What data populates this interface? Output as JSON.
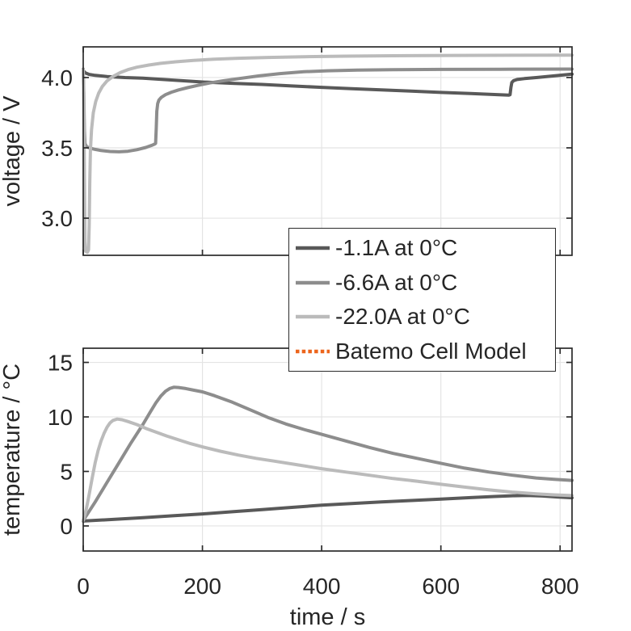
{
  "figure": {
    "background": "#ffffff",
    "axis_color": "#2b2b2b",
    "grid_color": "#e4e4e4",
    "text_color": "#262626"
  },
  "legend": {
    "items": [
      {
        "label": "-1.1A at 0°C",
        "color": "#595959",
        "dash": "solid"
      },
      {
        "label": "-6.6A at 0°C",
        "color": "#8d8d8d",
        "dash": "solid"
      },
      {
        "label": "-22.0A at 0°C",
        "color": "#bbbbbb",
        "dash": "solid"
      },
      {
        "label": "Batemo Cell Model",
        "color": "#ec651c",
        "dash": "dotted"
      }
    ]
  },
  "chart_data": [
    {
      "type": "line",
      "title": "",
      "xlabel": "",
      "ylabel": "voltage / V",
      "xlim": [
        0,
        820
      ],
      "ylim": [
        2.736,
        4.218
      ],
      "grid": true,
      "legend_position": "between-subplots",
      "xticks": [
        0,
        200,
        400,
        600,
        800
      ],
      "xticklabels": [
        "",
        "",
        "",
        "",
        ""
      ],
      "yticks": [
        3.0,
        3.5,
        4.0
      ],
      "yticklabels": [
        "3.0",
        "3.5",
        "4.0"
      ],
      "series": [
        {
          "name": "-1.1A at 0°C",
          "color": "#595959",
          "points": [
            [
              0,
              4.048
            ],
            [
              4,
              4.032
            ],
            [
              10,
              4.022
            ],
            [
              20,
              4.015
            ],
            [
              40,
              4.007
            ],
            [
              70,
              4.0
            ],
            [
              100,
              3.995
            ],
            [
              150,
              3.982
            ],
            [
              200,
              3.968
            ],
            [
              250,
              3.959
            ],
            [
              300,
              3.951
            ],
            [
              350,
              3.94
            ],
            [
              400,
              3.93
            ],
            [
              450,
              3.921
            ],
            [
              500,
              3.912
            ],
            [
              550,
              3.903
            ],
            [
              600,
              3.894
            ],
            [
              650,
              3.886
            ],
            [
              690,
              3.879
            ],
            [
              714,
              3.875
            ],
            [
              716,
              3.878
            ],
            [
              717.5,
              3.93
            ],
            [
              719,
              3.965
            ],
            [
              722,
              3.978
            ],
            [
              728,
              3.986
            ],
            [
              740,
              3.992
            ],
            [
              760,
              4.0
            ],
            [
              790,
              4.012
            ],
            [
              820,
              4.024
            ]
          ]
        },
        {
          "name": "-6.6A at 0°C",
          "color": "#8d8d8d",
          "points": [
            [
              0,
              4.06
            ],
            [
              1,
              3.9
            ],
            [
              2,
              3.62
            ],
            [
              3,
              3.53
            ],
            [
              6,
              3.507
            ],
            [
              12,
              3.497
            ],
            [
              20,
              3.489
            ],
            [
              30,
              3.481
            ],
            [
              45,
              3.474
            ],
            [
              60,
              3.472
            ],
            [
              75,
              3.476
            ],
            [
              90,
              3.487
            ],
            [
              105,
              3.503
            ],
            [
              115,
              3.518
            ],
            [
              120,
              3.527
            ],
            [
              121.5,
              3.532
            ],
            [
              122.5,
              3.64
            ],
            [
              123.5,
              3.76
            ],
            [
              125,
              3.815
            ],
            [
              127,
              3.84
            ],
            [
              131,
              3.859
            ],
            [
              138,
              3.878
            ],
            [
              148,
              3.896
            ],
            [
              160,
              3.912
            ],
            [
              175,
              3.928
            ],
            [
              192,
              3.944
            ],
            [
              212,
              3.961
            ],
            [
              235,
              3.977
            ],
            [
              262,
              3.993
            ],
            [
              295,
              4.012
            ],
            [
              330,
              4.028
            ],
            [
              370,
              4.041
            ],
            [
              410,
              4.048
            ],
            [
              460,
              4.053
            ],
            [
              520,
              4.056
            ],
            [
              600,
              4.058
            ],
            [
              700,
              4.059
            ],
            [
              820,
              4.06
            ]
          ]
        },
        {
          "name": "-22.0A at 0°C",
          "color": "#bbbbbb",
          "points": [
            [
              0,
              4.055
            ],
            [
              1,
              3.85
            ],
            [
              2,
              3.3
            ],
            [
              3,
              2.83
            ],
            [
              4,
              2.765
            ],
            [
              7,
              2.758
            ],
            [
              9,
              2.775
            ],
            [
              10,
              2.95
            ],
            [
              11,
              3.25
            ],
            [
              12,
              3.48
            ],
            [
              14,
              3.63
            ],
            [
              17,
              3.75
            ],
            [
              21,
              3.83
            ],
            [
              26,
              3.89
            ],
            [
              32,
              3.936
            ],
            [
              40,
              3.976
            ],
            [
              50,
              4.008
            ],
            [
              62,
              4.035
            ],
            [
              75,
              4.056
            ],
            [
              90,
              4.073
            ],
            [
              110,
              4.089
            ],
            [
              130,
              4.101
            ],
            [
              155,
              4.112
            ],
            [
              185,
              4.122
            ],
            [
              220,
              4.13
            ],
            [
              260,
              4.137
            ],
            [
              310,
              4.143
            ],
            [
              370,
              4.148
            ],
            [
              440,
              4.152
            ],
            [
              520,
              4.155
            ],
            [
              620,
              4.157
            ],
            [
              720,
              4.158
            ],
            [
              820,
              4.159
            ]
          ]
        }
      ]
    },
    {
      "type": "line",
      "title": "",
      "xlabel": "time / s",
      "ylabel": "temperature / °C",
      "xlim": [
        0,
        820
      ],
      "ylim": [
        -2.3,
        16.3
      ],
      "grid": true,
      "xticks": [
        0,
        200,
        400,
        600,
        800
      ],
      "xticklabels": [
        "0",
        "200",
        "400",
        "600",
        "800"
      ],
      "yticks": [
        0,
        5,
        10,
        15
      ],
      "yticklabels": [
        "0",
        "5",
        "10",
        "15"
      ],
      "series": [
        {
          "name": "-1.1A at 0°C",
          "color": "#595959",
          "points": [
            [
              0,
              0.45
            ],
            [
              50,
              0.6
            ],
            [
              100,
              0.76
            ],
            [
              150,
              0.93
            ],
            [
              200,
              1.1
            ],
            [
              250,
              1.3
            ],
            [
              300,
              1.5
            ],
            [
              350,
              1.7
            ],
            [
              400,
              1.9
            ],
            [
              450,
              2.06
            ],
            [
              500,
              2.2
            ],
            [
              550,
              2.33
            ],
            [
              600,
              2.46
            ],
            [
              650,
              2.6
            ],
            [
              690,
              2.7
            ],
            [
              720,
              2.77
            ],
            [
              745,
              2.8
            ],
            [
              770,
              2.75
            ],
            [
              795,
              2.66
            ],
            [
              820,
              2.58
            ]
          ]
        },
        {
          "name": "-6.6A at 0°C",
          "color": "#8d8d8d",
          "points": [
            [
              0,
              0.5
            ],
            [
              20,
              2.2
            ],
            [
              40,
              4.0
            ],
            [
              60,
              5.8
            ],
            [
              80,
              7.6
            ],
            [
              100,
              9.3
            ],
            [
              112,
              10.4
            ],
            [
              122,
              11.3
            ],
            [
              130,
              11.9
            ],
            [
              138,
              12.35
            ],
            [
              145,
              12.6
            ],
            [
              152,
              12.72
            ],
            [
              160,
              12.7
            ],
            [
              172,
              12.6
            ],
            [
              186,
              12.45
            ],
            [
              200,
              12.3
            ],
            [
              220,
              11.95
            ],
            [
              250,
              11.35
            ],
            [
              280,
              10.65
            ],
            [
              310,
              9.95
            ],
            [
              340,
              9.35
            ],
            [
              370,
              8.85
            ],
            [
              400,
              8.4
            ],
            [
              440,
              7.8
            ],
            [
              480,
              7.2
            ],
            [
              520,
              6.65
            ],
            [
              560,
              6.2
            ],
            [
              600,
              5.75
            ],
            [
              640,
              5.3
            ],
            [
              680,
              4.95
            ],
            [
              720,
              4.65
            ],
            [
              760,
              4.4
            ],
            [
              790,
              4.28
            ],
            [
              820,
              4.18
            ]
          ]
        },
        {
          "name": "-22.0A at 0°C",
          "color": "#bbbbbb",
          "points": [
            [
              0,
              0.5
            ],
            [
              5,
              1.5
            ],
            [
              10,
              2.9
            ],
            [
              15,
              4.4
            ],
            [
              20,
              5.8
            ],
            [
              25,
              6.9
            ],
            [
              30,
              7.8
            ],
            [
              35,
              8.5
            ],
            [
              40,
              9.05
            ],
            [
              45,
              9.45
            ],
            [
              50,
              9.68
            ],
            [
              57,
              9.8
            ],
            [
              65,
              9.74
            ],
            [
              75,
              9.58
            ],
            [
              90,
              9.3
            ],
            [
              105,
              8.95
            ],
            [
              120,
              8.65
            ],
            [
              140,
              8.25
            ],
            [
              160,
              7.9
            ],
            [
              180,
              7.55
            ],
            [
              200,
              7.25
            ],
            [
              230,
              6.85
            ],
            [
              260,
              6.5
            ],
            [
              290,
              6.2
            ],
            [
              320,
              5.95
            ],
            [
              360,
              5.6
            ],
            [
              400,
              5.25
            ],
            [
              440,
              4.95
            ],
            [
              480,
              4.65
            ],
            [
              520,
              4.35
            ],
            [
              560,
              4.1
            ],
            [
              600,
              3.82
            ],
            [
              640,
              3.56
            ],
            [
              680,
              3.32
            ],
            [
              720,
              3.1
            ],
            [
              760,
              2.95
            ],
            [
              790,
              2.85
            ],
            [
              820,
              2.78
            ]
          ]
        }
      ]
    }
  ]
}
